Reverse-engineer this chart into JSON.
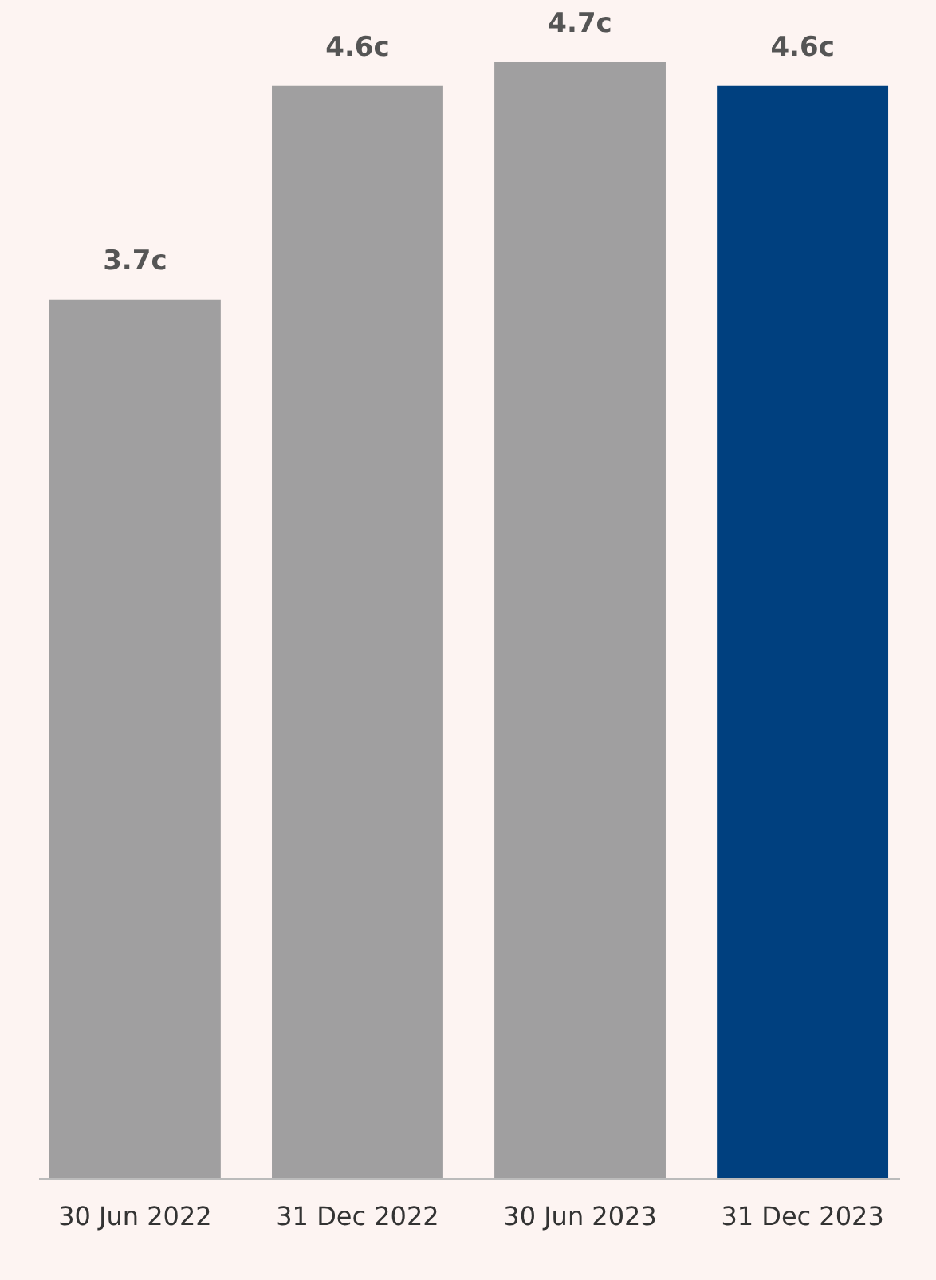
{
  "chart_data": {
    "type": "bar",
    "categories": [
      "30 Jun 2022",
      "31 Dec 2022",
      "30 Jun 2023",
      "31 Dec 2023"
    ],
    "values": [
      3.7,
      4.6,
      4.7,
      4.6
    ],
    "colors": [
      "#a09fa0",
      "#a09fa0",
      "#a09fa0",
      "#00407f"
    ],
    "value_labels": [
      "3.7c",
      "4.6c",
      "4.7c",
      "4.6c"
    ]
  }
}
